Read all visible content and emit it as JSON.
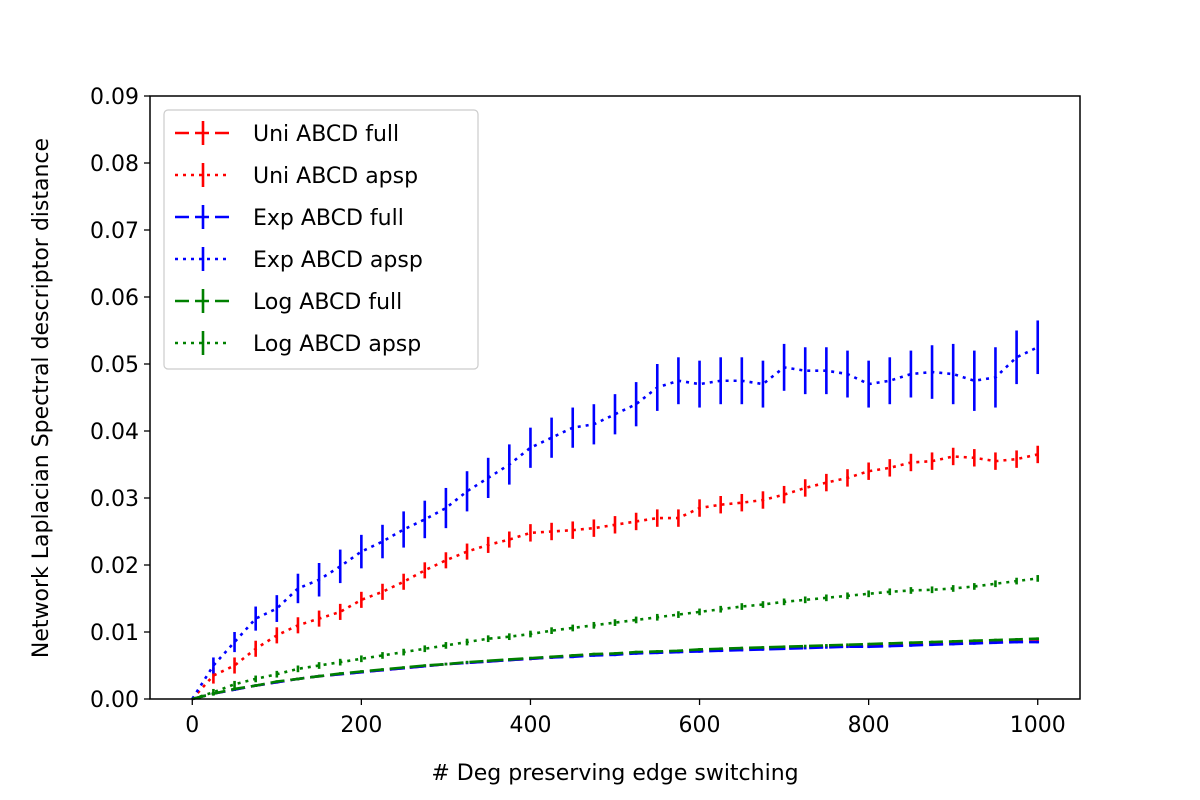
{
  "chart_data": {
    "type": "line",
    "xlabel": "# Deg preserving edge switching",
    "ylabel": "Network Laplacian Spectral descriptor distance",
    "xlim": [
      -50,
      1050
    ],
    "ylim": [
      0,
      0.09
    ],
    "xticks": [
      0,
      200,
      400,
      600,
      800,
      1000
    ],
    "yticks": [
      0.0,
      0.01,
      0.02,
      0.03,
      0.04,
      0.05,
      0.06,
      0.07,
      0.08,
      0.09
    ],
    "xtick_labels": [
      "0",
      "200",
      "400",
      "600",
      "800",
      "1000"
    ],
    "ytick_labels": [
      "0.00",
      "0.01",
      "0.02",
      "0.03",
      "0.04",
      "0.05",
      "0.06",
      "0.07",
      "0.08",
      "0.09"
    ],
    "legend_position": "upper-left",
    "grid": false,
    "x": [
      0,
      25,
      50,
      75,
      100,
      125,
      150,
      175,
      200,
      225,
      250,
      275,
      300,
      325,
      350,
      375,
      400,
      425,
      450,
      475,
      500,
      525,
      550,
      575,
      600,
      625,
      650,
      675,
      700,
      725,
      750,
      775,
      800,
      825,
      850,
      875,
      900,
      925,
      950,
      975,
      1000
    ],
    "series": [
      {
        "name": "Uni ABCD full",
        "color": "#ff0000",
        "dash": "dashed",
        "y": [
          0.0,
          0.0008,
          0.0014,
          0.002,
          0.0025,
          0.003,
          0.0034,
          0.0037,
          0.004,
          0.0043,
          0.0046,
          0.0049,
          0.0052,
          0.0054,
          0.0056,
          0.0058,
          0.006,
          0.0062,
          0.0064,
          0.0066,
          0.0067,
          0.0069,
          0.007,
          0.0071,
          0.0072,
          0.0073,
          0.0074,
          0.0075,
          0.0076,
          0.0077,
          0.0078,
          0.0079,
          0.0079,
          0.008,
          0.0081,
          0.0082,
          0.0083,
          0.0084,
          0.0085,
          0.0086,
          0.0086
        ],
        "err": [
          0,
          0.0002,
          0.0002,
          0.0002,
          0.0002,
          0.0002,
          0.0002,
          0.0002,
          0.0002,
          0.0002,
          0.0002,
          0.0002,
          0.0002,
          0.0002,
          0.0002,
          0.0002,
          0.0002,
          0.0002,
          0.0002,
          0.0002,
          0.0002,
          0.0002,
          0.0002,
          0.0002,
          0.0002,
          0.0002,
          0.0002,
          0.0002,
          0.0002,
          0.0002,
          0.0002,
          0.0002,
          0.0002,
          0.0002,
          0.0002,
          0.0002,
          0.0002,
          0.0002,
          0.0002,
          0.0002,
          0.0002
        ]
      },
      {
        "name": "Uni ABCD apsp",
        "color": "#ff0000",
        "dash": "dotted",
        "y": [
          0.0,
          0.0035,
          0.005,
          0.0075,
          0.0095,
          0.011,
          0.012,
          0.013,
          0.0148,
          0.016,
          0.0175,
          0.0192,
          0.0207,
          0.022,
          0.023,
          0.0238,
          0.0248,
          0.025,
          0.0252,
          0.0255,
          0.026,
          0.0265,
          0.027,
          0.027,
          0.0285,
          0.029,
          0.0293,
          0.0297,
          0.0305,
          0.0315,
          0.0323,
          0.033,
          0.034,
          0.0345,
          0.0353,
          0.0355,
          0.0362,
          0.036,
          0.0355,
          0.0358,
          0.0365
        ],
        "err": [
          0,
          0.0012,
          0.0012,
          0.0012,
          0.0012,
          0.0012,
          0.0012,
          0.0012,
          0.0012,
          0.0012,
          0.0012,
          0.0012,
          0.0012,
          0.0012,
          0.0012,
          0.0012,
          0.0013,
          0.0013,
          0.0013,
          0.0013,
          0.0013,
          0.0013,
          0.0013,
          0.0013,
          0.0013,
          0.0013,
          0.0013,
          0.0013,
          0.0013,
          0.0013,
          0.0013,
          0.0013,
          0.0013,
          0.0013,
          0.0013,
          0.0013,
          0.0013,
          0.0013,
          0.0013,
          0.0013,
          0.0013
        ]
      },
      {
        "name": "Exp ABCD full",
        "color": "#0000ff",
        "dash": "dashed",
        "y": [
          0.0,
          0.0008,
          0.0014,
          0.002,
          0.0025,
          0.003,
          0.0034,
          0.0037,
          0.004,
          0.0043,
          0.0046,
          0.0049,
          0.0052,
          0.0054,
          0.0056,
          0.0058,
          0.006,
          0.0062,
          0.0063,
          0.0065,
          0.0066,
          0.0068,
          0.0069,
          0.007,
          0.0071,
          0.0072,
          0.0073,
          0.0074,
          0.0075,
          0.0076,
          0.0077,
          0.0078,
          0.0078,
          0.0079,
          0.008,
          0.0081,
          0.0082,
          0.0083,
          0.0084,
          0.0085,
          0.0085
        ],
        "err": [
          0,
          0.0002,
          0.0002,
          0.0002,
          0.0002,
          0.0002,
          0.0002,
          0.0002,
          0.0002,
          0.0002,
          0.0002,
          0.0002,
          0.0002,
          0.0002,
          0.0002,
          0.0002,
          0.0002,
          0.0002,
          0.0002,
          0.0002,
          0.0002,
          0.0002,
          0.0002,
          0.0002,
          0.0002,
          0.0002,
          0.0002,
          0.0002,
          0.0002,
          0.0002,
          0.0002,
          0.0002,
          0.0002,
          0.0002,
          0.0002,
          0.0002,
          0.0002,
          0.0002,
          0.0002,
          0.0002,
          0.0002
        ]
      },
      {
        "name": "Exp ABCD apsp",
        "color": "#0000ff",
        "dash": "dotted",
        "y": [
          0.0,
          0.005,
          0.0085,
          0.012,
          0.0135,
          0.0165,
          0.0178,
          0.0198,
          0.022,
          0.0235,
          0.0253,
          0.0268,
          0.0285,
          0.031,
          0.033,
          0.035,
          0.0375,
          0.039,
          0.0405,
          0.041,
          0.0425,
          0.044,
          0.0465,
          0.0475,
          0.047,
          0.0475,
          0.0475,
          0.047,
          0.0495,
          0.049,
          0.049,
          0.0485,
          0.047,
          0.0475,
          0.0485,
          0.0488,
          0.0485,
          0.0475,
          0.048,
          0.051,
          0.0525
        ],
        "err": [
          0,
          0.0012,
          0.0015,
          0.0018,
          0.002,
          0.0022,
          0.0025,
          0.0025,
          0.0025,
          0.0025,
          0.0027,
          0.0028,
          0.003,
          0.003,
          0.003,
          0.003,
          0.003,
          0.003,
          0.003,
          0.003,
          0.003,
          0.0033,
          0.0035,
          0.0035,
          0.0035,
          0.0035,
          0.0035,
          0.0035,
          0.0035,
          0.0035,
          0.0035,
          0.0035,
          0.0035,
          0.0035,
          0.0035,
          0.004,
          0.0045,
          0.0045,
          0.0045,
          0.004,
          0.004
        ]
      },
      {
        "name": "Log ABCD full",
        "color": "#008000",
        "dash": "dashed",
        "y": [
          0.0,
          0.0008,
          0.0015,
          0.002,
          0.0026,
          0.003,
          0.0034,
          0.0038,
          0.0041,
          0.0044,
          0.0047,
          0.005,
          0.0052,
          0.0055,
          0.0057,
          0.0059,
          0.0061,
          0.0063,
          0.0065,
          0.0067,
          0.0068,
          0.007,
          0.0071,
          0.0072,
          0.0074,
          0.0075,
          0.0076,
          0.0077,
          0.0078,
          0.0079,
          0.008,
          0.0081,
          0.0082,
          0.0083,
          0.0084,
          0.0085,
          0.0086,
          0.0087,
          0.0088,
          0.0089,
          0.009
        ],
        "err": [
          0,
          0.0002,
          0.0002,
          0.0002,
          0.0002,
          0.0002,
          0.0002,
          0.0002,
          0.0002,
          0.0002,
          0.0002,
          0.0002,
          0.0002,
          0.0002,
          0.0002,
          0.0002,
          0.0002,
          0.0002,
          0.0002,
          0.0002,
          0.0002,
          0.0002,
          0.0002,
          0.0002,
          0.0002,
          0.0002,
          0.0002,
          0.0002,
          0.0002,
          0.0002,
          0.0002,
          0.0002,
          0.0002,
          0.0002,
          0.0002,
          0.0002,
          0.0002,
          0.0002,
          0.0002,
          0.0002,
          0.0002
        ]
      },
      {
        "name": "Log ABCD apsp",
        "color": "#008000",
        "dash": "dotted",
        "y": [
          0.0,
          0.001,
          0.0022,
          0.003,
          0.0037,
          0.0045,
          0.005,
          0.0055,
          0.006,
          0.0065,
          0.007,
          0.0075,
          0.008,
          0.0085,
          0.009,
          0.0093,
          0.0097,
          0.0102,
          0.0106,
          0.011,
          0.0114,
          0.0118,
          0.0122,
          0.0126,
          0.013,
          0.0134,
          0.0138,
          0.0141,
          0.0145,
          0.0148,
          0.0151,
          0.0154,
          0.0157,
          0.016,
          0.0162,
          0.0163,
          0.0165,
          0.0168,
          0.0172,
          0.0176,
          0.018
        ],
        "err": [
          0,
          0.0005,
          0.0005,
          0.0005,
          0.0005,
          0.0005,
          0.0005,
          0.0005,
          0.0005,
          0.0005,
          0.0005,
          0.0005,
          0.0005,
          0.0005,
          0.0005,
          0.0005,
          0.0005,
          0.0005,
          0.0005,
          0.0005,
          0.0005,
          0.0005,
          0.0005,
          0.0005,
          0.0005,
          0.0005,
          0.0005,
          0.0005,
          0.0005,
          0.0005,
          0.0005,
          0.0005,
          0.0005,
          0.0005,
          0.0005,
          0.0005,
          0.0005,
          0.0005,
          0.0005,
          0.0005,
          0.0005
        ]
      }
    ]
  }
}
